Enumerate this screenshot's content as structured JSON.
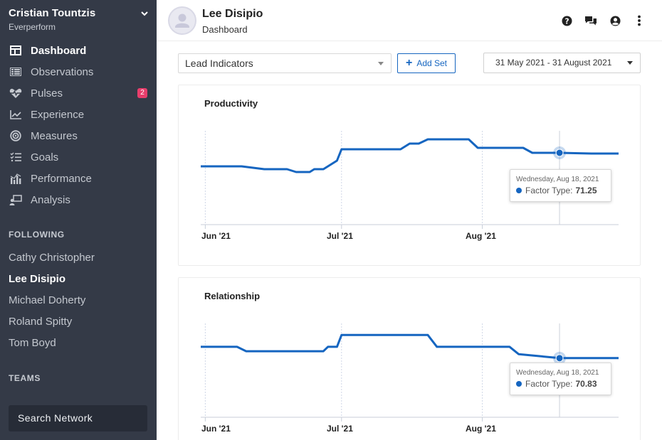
{
  "sidebar": {
    "user_name": "Cristian Tountzis",
    "org": "Everperform",
    "nav": [
      {
        "label": "Dashboard",
        "icon": "dashboard-icon",
        "active": true
      },
      {
        "label": "Observations",
        "icon": "observations-icon"
      },
      {
        "label": "Pulses",
        "icon": "heartbeat-icon",
        "badge": "2"
      },
      {
        "label": "Experience",
        "icon": "chart-line-icon"
      },
      {
        "label": "Measures",
        "icon": "target-icon"
      },
      {
        "label": "Goals",
        "icon": "tasks-icon"
      },
      {
        "label": "Performance",
        "icon": "bar-chart-icon"
      },
      {
        "label": "Analysis",
        "icon": "person-board-icon"
      }
    ],
    "following_label": "FOLLOWING",
    "following": [
      {
        "label": "Cathy Christopher"
      },
      {
        "label": "Lee Disipio",
        "active": true
      },
      {
        "label": "Michael Doherty"
      },
      {
        "label": "Roland Spitty"
      },
      {
        "label": "Tom Boyd"
      }
    ],
    "teams_label": "TEAMS",
    "search_label": "Search Network",
    "badge_color": "#e83e6c",
    "bg_color": "#343a47"
  },
  "header": {
    "name": "Lee Disipio",
    "subtitle": "Dashboard",
    "icons": [
      "help-icon",
      "comments-icon",
      "user-circle-icon",
      "more-vertical-icon"
    ]
  },
  "toolbar": {
    "select_value": "Lead Indicators",
    "add_set_label": "Add Set",
    "date_range": "31 May 2021 - 31 August 2021",
    "accent_color": "#1565c0"
  },
  "charts": [
    {
      "title": "Productivity",
      "tooltip_date": "Wednesday, Aug 18, 2021",
      "tooltip_label": "Factor Type:",
      "tooltip_value": "71.25",
      "x_ticks": [
        "Jun '21",
        "Jul '21",
        "Aug '21"
      ]
    },
    {
      "title": "Relationship",
      "tooltip_date": "Wednesday, Aug 18, 2021",
      "tooltip_label": "Factor Type:",
      "tooltip_value": "70.83",
      "x_ticks": [
        "Jun '21",
        "Jul '21",
        "Aug '21"
      ]
    }
  ],
  "chart_data": [
    {
      "type": "line",
      "title": "Productivity",
      "x_range": [
        "2021-05-31",
        "2021-08-31"
      ],
      "x_ticks": [
        "Jun '21",
        "Jul '21",
        "Aug '21"
      ],
      "series": [
        {
          "name": "Factor Type",
          "color": "#1565c0",
          "x": [
            "2021-05-31",
            "2021-06-09",
            "2021-06-14",
            "2021-06-19",
            "2021-06-21",
            "2021-06-24",
            "2021-06-25",
            "2021-06-27",
            "2021-06-30",
            "2021-07-01",
            "2021-07-07",
            "2021-07-14",
            "2021-07-16",
            "2021-07-18",
            "2021-07-20",
            "2021-07-25",
            "2021-07-29",
            "2021-07-31",
            "2021-08-10",
            "2021-08-12",
            "2021-08-18",
            "2021-08-25",
            "2021-08-31"
          ],
          "y": [
            70.3,
            70.3,
            70.1,
            70.1,
            69.9,
            69.9,
            70.1,
            70.1,
            70.7,
            71.5,
            71.5,
            71.5,
            71.9,
            71.9,
            72.2,
            72.2,
            72.2,
            71.6,
            71.6,
            71.25,
            71.25,
            71.2,
            71.2
          ]
        }
      ],
      "highlight": {
        "x": "2021-08-18",
        "y": 71.25
      },
      "grid": "vertical"
    },
    {
      "type": "line",
      "title": "Relationship",
      "x_range": [
        "2021-05-31",
        "2021-08-31"
      ],
      "x_ticks": [
        "Jun '21",
        "Jul '21",
        "Aug '21"
      ],
      "series": [
        {
          "name": "Factor Type",
          "color": "#1565c0",
          "x": [
            "2021-05-31",
            "2021-06-08",
            "2021-06-10",
            "2021-06-27",
            "2021-06-28",
            "2021-06-30",
            "2021-07-01",
            "2021-07-03",
            "2021-07-20",
            "2021-07-22",
            "2021-08-07",
            "2021-08-09",
            "2021-08-18",
            "2021-08-31"
          ],
          "y": [
            71.6,
            71.6,
            71.3,
            71.3,
            71.6,
            71.6,
            72.4,
            72.4,
            72.4,
            71.6,
            71.6,
            71.1,
            70.83,
            70.83
          ]
        }
      ],
      "highlight": {
        "x": "2021-08-18",
        "y": 70.83
      },
      "grid": "vertical"
    }
  ]
}
